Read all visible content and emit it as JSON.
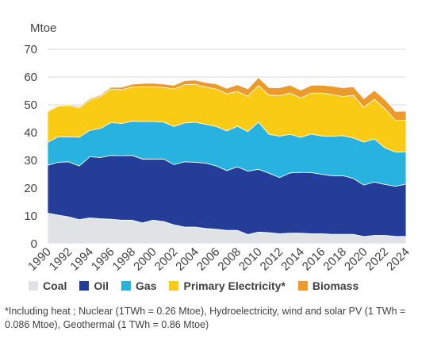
{
  "chart_data": {
    "type": "area",
    "stacked": true,
    "ylabel": "Mtoe",
    "ylim": [
      0,
      70
    ],
    "yticks": [
      0,
      10,
      20,
      30,
      40,
      50,
      60,
      70
    ],
    "grid": true,
    "legend_placement": "bottom",
    "x": [
      1990,
      1991,
      1992,
      1993,
      1994,
      1995,
      1996,
      1997,
      1998,
      1999,
      2000,
      2001,
      2002,
      2003,
      2004,
      2005,
      2006,
      2007,
      2008,
      2009,
      2010,
      2011,
      2012,
      2013,
      2014,
      2015,
      2016,
      2017,
      2018,
      2019,
      2020,
      2021,
      2022,
      2023,
      2024
    ],
    "xticks": [
      "1990",
      "1992",
      "1994",
      "1996",
      "1998",
      "2000",
      "2002",
      "2004",
      "2006",
      "2008",
      "2010",
      "2012",
      "2014",
      "2016",
      "2018",
      "2020",
      "2022",
      "2024"
    ],
    "series": [
      {
        "name": "Coal",
        "color": "#dfe3e6",
        "values": [
          11,
          10.3,
          9.7,
          8.7,
          9.3,
          9.0,
          8.8,
          8.5,
          8.5,
          7.5,
          8.5,
          8.0,
          6.8,
          6.0,
          6.0,
          5.5,
          5.2,
          4.8,
          4.8,
          3.3,
          4.2,
          4.0,
          3.6,
          3.8,
          3.8,
          3.6,
          3.6,
          3.4,
          3.4,
          3.4,
          2.6,
          3.0,
          3.0,
          2.7,
          2.6
        ]
      },
      {
        "name": "Oil",
        "color": "#233d98",
        "values": [
          17.2,
          19.0,
          19.8,
          19.3,
          22.0,
          22.0,
          23.0,
          23.2,
          23.3,
          23.0,
          22.0,
          22.5,
          21.7,
          23.5,
          23.3,
          23.5,
          22.8,
          21.5,
          22.9,
          22.8,
          22.6,
          21.4,
          20.2,
          21.7,
          21.9,
          22.0,
          21.4,
          21.1,
          21.1,
          20.1,
          18.5,
          19.2,
          18.3,
          18.0,
          18.9
        ]
      },
      {
        "name": "Gas",
        "color": "#27b2df",
        "values": [
          8.3,
          9.2,
          9.0,
          10.3,
          9.5,
          10.5,
          11.8,
          11.6,
          12.3,
          13.5,
          13.5,
          13.3,
          13.7,
          14.0,
          14.4,
          14.0,
          14.2,
          14.3,
          14.6,
          14.3,
          17.0,
          14.0,
          14.9,
          13.9,
          12.6,
          13.9,
          13.8,
          14.2,
          14.4,
          14.6,
          15.5,
          15.5,
          13.2,
          12.3,
          11.6
        ]
      },
      {
        "name": "Primary Electricity*",
        "color": "#f9cb14",
        "values": [
          11.0,
          11.0,
          11.2,
          10.6,
          10.9,
          11.5,
          12.1,
          12.1,
          12.3,
          12.5,
          12.5,
          12.5,
          13.5,
          13.8,
          13.7,
          13.4,
          13.5,
          13.4,
          12.5,
          12.7,
          13.2,
          14.1,
          14.6,
          14.9,
          14.2,
          14.7,
          15.4,
          15.0,
          14.1,
          15.3,
          12.5,
          14.3,
          14.1,
          11.4,
          11.4
        ]
      },
      {
        "name": "Biomass",
        "color": "#ec9a2a",
        "values": [
          0.3,
          0.3,
          0.4,
          0.4,
          0.5,
          0.5,
          0.6,
          0.9,
          1.0,
          1.2,
          1.3,
          1.2,
          1.3,
          1.4,
          1.5,
          1.6,
          1.8,
          1.9,
          2.4,
          2.6,
          2.8,
          2.7,
          2.8,
          2.8,
          2.8,
          2.8,
          2.9,
          3.0,
          3.1,
          3.1,
          3.1,
          3.2,
          3.3,
          3.2,
          3.2
        ]
      }
    ]
  },
  "legend": {
    "items": [
      {
        "label": "Coal",
        "color": "#dfe3e6"
      },
      {
        "label": "Oil",
        "color": "#233d98"
      },
      {
        "label": "Gas",
        "color": "#27b2df"
      },
      {
        "label": "Primary Electricity*",
        "color": "#f9cb14"
      },
      {
        "label": "Biomass",
        "color": "#ec9a2a"
      }
    ]
  },
  "footnote": "*Including heat ; Nuclear (1TWh = 0.26 Mtoe), Hydroelectricity, wind and solar PV (1 TWh = 0.086 Mtoe), Geothermal (1 TWh = 0.86 Mtoe)"
}
